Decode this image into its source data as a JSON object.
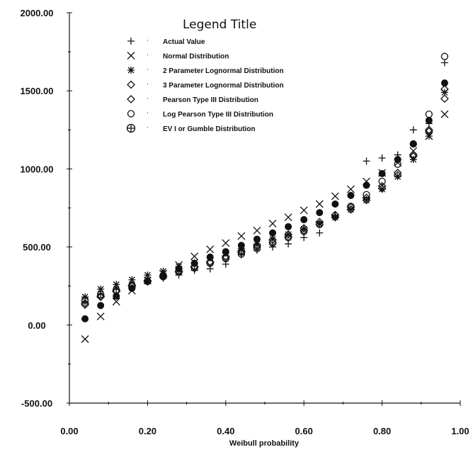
{
  "chart_data": {
    "type": "scatter",
    "xlabel": "Weibull probability",
    "ylabel": "",
    "xlim": [
      0,
      1
    ],
    "ylim": [
      -500,
      2000
    ],
    "x_ticks": [
      "0.00",
      "0.20",
      "0.40",
      "0.60",
      "0.80",
      "1.00"
    ],
    "y_ticks": [
      "-500.00",
      "0.00",
      "500.00",
      "1000.00",
      "1500.00",
      "2000.00"
    ],
    "grid": false,
    "legend": {
      "title": "Legend Title",
      "placement": "top-left"
    },
    "series": [
      {
        "name": "Actual Value",
        "marker": "plus-icon",
        "x": [
          0.04,
          0.08,
          0.12,
          0.16,
          0.2,
          0.24,
          0.28,
          0.32,
          0.36,
          0.4,
          0.44,
          0.48,
          0.52,
          0.56,
          0.6,
          0.64,
          0.68,
          0.72,
          0.76,
          0.8,
          0.84,
          0.88,
          0.92,
          0.96
        ],
        "y": [
          150,
          200,
          230,
          240,
          275,
          300,
          320,
          350,
          360,
          390,
          450,
          480,
          500,
          520,
          560,
          590,
          700,
          830,
          1050,
          1070,
          1090,
          1250,
          1290,
          1680
        ]
      },
      {
        "name": "Normal Distribution",
        "marker": "cross-icon",
        "x": [
          0.04,
          0.08,
          0.12,
          0.16,
          0.2,
          0.24,
          0.28,
          0.32,
          0.36,
          0.4,
          0.44,
          0.48,
          0.52,
          0.56,
          0.6,
          0.64,
          0.68,
          0.72,
          0.76,
          0.8,
          0.84,
          0.88,
          0.92,
          0.96
        ],
        "y": [
          -90,
          55,
          150,
          220,
          285,
          330,
          385,
          440,
          485,
          525,
          570,
          605,
          650,
          690,
          735,
          775,
          825,
          870,
          920,
          975,
          1040,
          1115,
          1210,
          1350
        ]
      },
      {
        "name": "2 Parameter Lognormal Distribution",
        "marker": "asterisk-icon",
        "x": [
          0.04,
          0.08,
          0.12,
          0.16,
          0.2,
          0.24,
          0.28,
          0.32,
          0.36,
          0.4,
          0.44,
          0.48,
          0.52,
          0.56,
          0.6,
          0.64,
          0.68,
          0.72,
          0.76,
          0.8,
          0.84,
          0.88,
          0.92,
          0.96
        ],
        "y": [
          180,
          230,
          260,
          290,
          320,
          345,
          375,
          400,
          430,
          460,
          490,
          520,
          550,
          580,
          615,
          650,
          690,
          740,
          800,
          870,
          950,
          1060,
          1210,
          1490
        ]
      },
      {
        "name": "3 Parameter Lognormal Distribution",
        "marker": "diamond-icon",
        "x": [
          0.04,
          0.08,
          0.12,
          0.16,
          0.2,
          0.24,
          0.28,
          0.32,
          0.36,
          0.4,
          0.44,
          0.48,
          0.52,
          0.56,
          0.6,
          0.64,
          0.68,
          0.72,
          0.76,
          0.8,
          0.84,
          0.88,
          0.92,
          0.96
        ],
        "y": [
          130,
          180,
          215,
          250,
          280,
          310,
          340,
          370,
          400,
          430,
          465,
          500,
          530,
          565,
          605,
          645,
          690,
          740,
          800,
          875,
          960,
          1080,
          1240,
          1450
        ]
      },
      {
        "name": "Pearson Type III Distribution",
        "marker": "diamond-icon",
        "x": [
          0.04,
          0.08,
          0.12,
          0.16,
          0.2,
          0.24,
          0.28,
          0.32,
          0.36,
          0.4,
          0.44,
          0.48,
          0.52,
          0.56,
          0.6,
          0.64,
          0.68,
          0.72,
          0.76,
          0.8,
          0.84,
          0.88,
          0.92,
          0.96
        ],
        "y": [
          140,
          185,
          220,
          255,
          285,
          315,
          345,
          375,
          405,
          440,
          475,
          510,
          545,
          580,
          620,
          660,
          705,
          755,
          815,
          890,
          975,
          1090,
          1250,
          1510
        ]
      },
      {
        "name": "Log Pearson Type III Distribution",
        "marker": "circle-icon",
        "x": [
          0.04,
          0.08,
          0.12,
          0.16,
          0.2,
          0.24,
          0.28,
          0.32,
          0.36,
          0.4,
          0.44,
          0.48,
          0.52,
          0.56,
          0.6,
          0.64,
          0.68,
          0.72,
          0.76,
          0.8,
          0.84,
          0.88,
          0.92,
          0.96
        ],
        "y": [
          160,
          195,
          225,
          255,
          280,
          310,
          340,
          365,
          395,
          425,
          455,
          490,
          525,
          560,
          600,
          645,
          700,
          760,
          835,
          920,
          1030,
          1160,
          1350,
          1720
        ]
      },
      {
        "name": "EV I or Gumble Distribution",
        "marker": "circle-plus-icon",
        "x": [
          0.04,
          0.08,
          0.12,
          0.16,
          0.2,
          0.24,
          0.28,
          0.32,
          0.36,
          0.4,
          0.44,
          0.48,
          0.52,
          0.56,
          0.6,
          0.64,
          0.68,
          0.72,
          0.76,
          0.8,
          0.84,
          0.88,
          0.92,
          0.96
        ],
        "y": [
          40,
          125,
          185,
          235,
          280,
          320,
          360,
          395,
          435,
          470,
          510,
          550,
          590,
          630,
          675,
          720,
          775,
          830,
          895,
          970,
          1060,
          1160,
          1310,
          1550
        ]
      }
    ]
  }
}
